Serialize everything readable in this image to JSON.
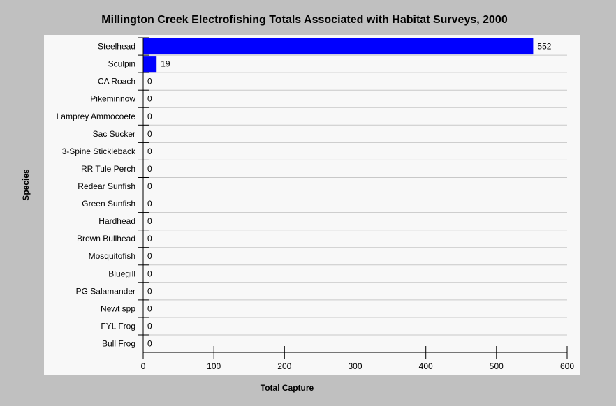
{
  "chart_data": {
    "type": "bar",
    "orientation": "horizontal",
    "title": "Millington Creek Electrofishing Totals Associated with Habitat Surveys, 2000",
    "xlabel": "Total Capture",
    "ylabel": "Species",
    "xlim": [
      0,
      600
    ],
    "xticks": [
      "0",
      "100",
      "200",
      "300",
      "400",
      "500",
      "600"
    ],
    "categories": [
      "Steelhead",
      "Sculpin",
      "CA Roach",
      "Pikeminnow",
      "Lamprey Ammocoete",
      "Sac Sucker",
      "3-Spine Stickleback",
      "RR Tule Perch",
      "Redear Sunfish",
      "Green Sunfish",
      "Hardhead",
      "Brown Bullhead",
      "Mosquitofish",
      "Bluegill",
      "PG Salamander",
      "Newt spp",
      "FYL Frog",
      "Bull Frog"
    ],
    "values": [
      552,
      19,
      0,
      0,
      0,
      0,
      0,
      0,
      0,
      0,
      0,
      0,
      0,
      0,
      0,
      0,
      0,
      0
    ],
    "bar_color": "#0000ff",
    "grid": "horizontal",
    "legend": "none"
  },
  "colors": {
    "background": "#c0c0c0",
    "plot_background": "#f8f8f8",
    "gridline": "#c8c8c8",
    "bar": "#0000ff"
  }
}
